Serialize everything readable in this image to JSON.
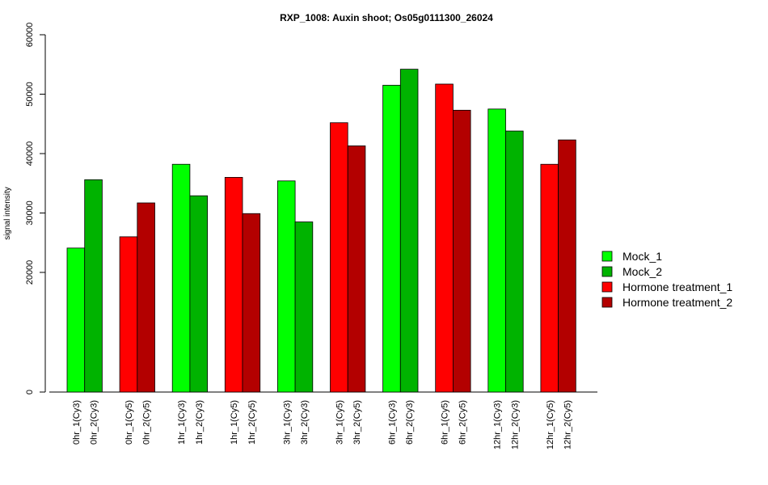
{
  "chart_data": {
    "type": "bar",
    "title": "RXP_1008: Auxin shoot; Os05g0111300_26024",
    "xlabel": "",
    "ylabel": "signal intensity",
    "ylim": [
      0,
      60000
    ],
    "yticks": [
      {
        "value": 0,
        "label": "0"
      },
      {
        "value": 20000,
        "label": "20000"
      },
      {
        "value": 30000,
        "label": "30000"
      },
      {
        "value": 40000,
        "label": "40000"
      },
      {
        "value": 50000,
        "label": "50000"
      },
      {
        "value": 60000,
        "label": "60000"
      }
    ],
    "y_scale": "piecewise: 0-20000 compressed, 20000-60000 linear",
    "legend_position": "right",
    "series": [
      {
        "name": "Mock_1",
        "color": "#00ff00"
      },
      {
        "name": "Mock_2",
        "color": "#00b300"
      },
      {
        "name": "Hormone treatment_1",
        "color": "#ff0000"
      },
      {
        "name": "Hormone treatment_2",
        "color": "#b30000"
      }
    ],
    "groups": [
      {
        "bars": [
          {
            "label": "0hr_1(Cy3)",
            "value": 24100,
            "series": 0
          },
          {
            "label": "0hr_2(Cy3)",
            "value": 35600,
            "series": 1
          }
        ]
      },
      {
        "bars": [
          {
            "label": "0hr_1(Cy5)",
            "value": 26000,
            "series": 2
          },
          {
            "label": "0hr_2(Cy5)",
            "value": 31700,
            "series": 3
          }
        ]
      },
      {
        "bars": [
          {
            "label": "1hr_1(Cy3)",
            "value": 38200,
            "series": 0
          },
          {
            "label": "1hr_2(Cy3)",
            "value": 32900,
            "series": 1
          }
        ]
      },
      {
        "bars": [
          {
            "label": "1hr_1(Cy5)",
            "value": 36000,
            "series": 2
          },
          {
            "label": "1hr_2(Cy5)",
            "value": 29900,
            "series": 3
          }
        ]
      },
      {
        "bars": [
          {
            "label": "3hr_1(Cy3)",
            "value": 35400,
            "series": 0
          },
          {
            "label": "3hr_2(Cy3)",
            "value": 28500,
            "series": 1
          }
        ]
      },
      {
        "bars": [
          {
            "label": "3hr_1(Cy5)",
            "value": 45200,
            "series": 2
          },
          {
            "label": "3hr_2(Cy5)",
            "value": 41300,
            "series": 3
          }
        ]
      },
      {
        "bars": [
          {
            "label": "6hr_1(Cy3)",
            "value": 51500,
            "series": 0
          },
          {
            "label": "6hr_2(Cy3)",
            "value": 54200,
            "series": 1
          }
        ]
      },
      {
        "bars": [
          {
            "label": "6hr_1(Cy5)",
            "value": 51700,
            "series": 2
          },
          {
            "label": "6hr_2(Cy5)",
            "value": 47300,
            "series": 3
          }
        ]
      },
      {
        "bars": [
          {
            "label": "12hr_1(Cy3)",
            "value": 47500,
            "series": 0
          },
          {
            "label": "12hr_2(Cy3)",
            "value": 43800,
            "series": 1
          }
        ]
      },
      {
        "bars": [
          {
            "label": "12hr_1(Cy5)",
            "value": 38200,
            "series": 2
          },
          {
            "label": "12hr_2(Cy5)",
            "value": 42300,
            "series": 3
          }
        ]
      }
    ]
  }
}
